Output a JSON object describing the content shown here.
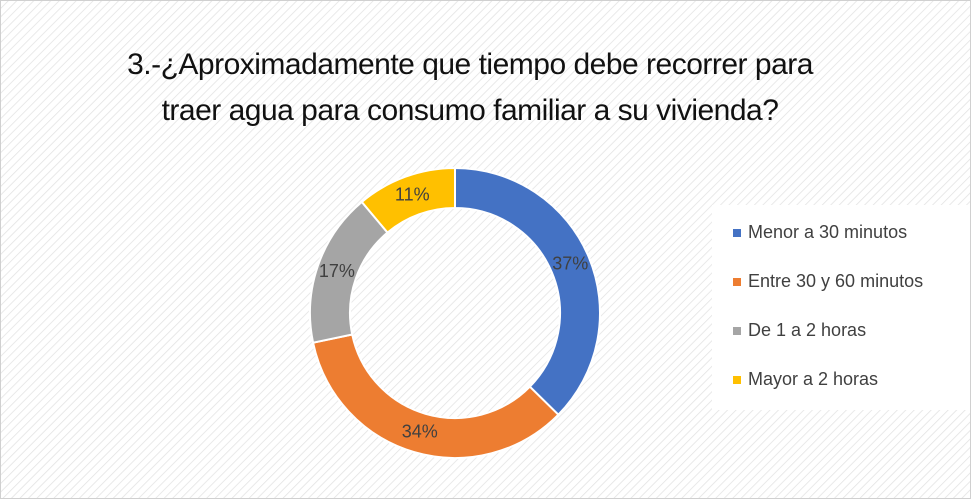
{
  "chart_data": {
    "type": "donut",
    "title": "3.-¿Aproximadamente que tiempo debe recorrer para traer agua para consumo familiar a su vivienda?",
    "categories": [
      "Menor a 30 minutos",
      "Entre 30 y 60 minutos",
      "De 1 a 2 horas",
      "Mayor a 2 horas"
    ],
    "values": [
      37,
      34,
      17,
      11
    ],
    "value_labels": [
      "37%",
      "34%",
      "17%",
      "11%"
    ],
    "colors": [
      "#4472c4",
      "#ed7d31",
      "#a5a5a5",
      "#ffc000"
    ],
    "legend": "right"
  }
}
